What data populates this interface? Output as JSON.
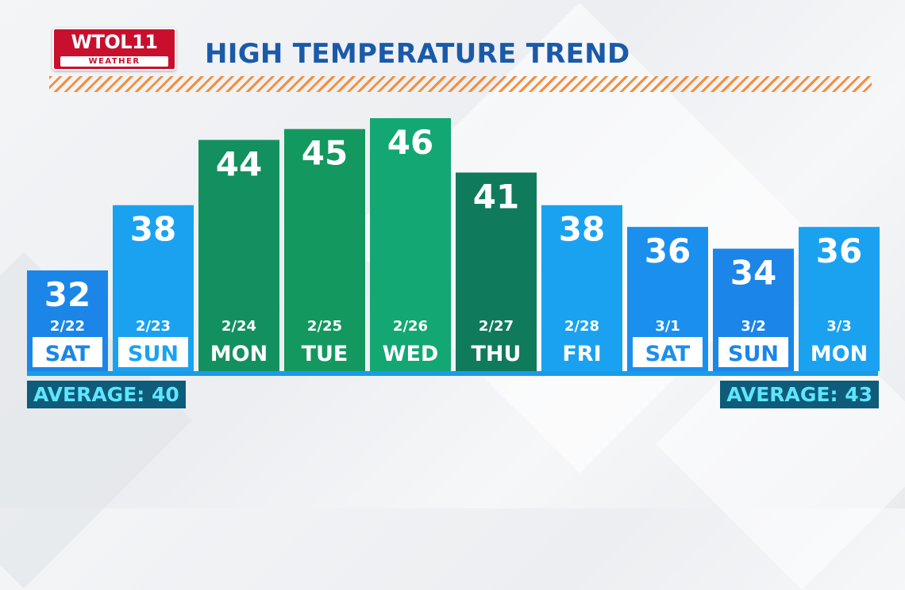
{
  "logo": {
    "main": "WTOL11",
    "sub": "WEATHER"
  },
  "colors": {
    "title": "#1b5aa8",
    "stripe": "#f58e3c",
    "blue_light": "#1aa2f0",
    "blue": "#1b86e8",
    "blue_mid": "#198ff0",
    "green": "#13905f",
    "green_light": "#13a774",
    "green_dark": "#107a5c",
    "average_bg": "#0e5b7a",
    "average_text": "#5fe6ff"
  },
  "chart_data": {
    "type": "bar",
    "title": "HIGH TEMPERATURE TREND",
    "categories": [
      "SAT",
      "SUN",
      "MON",
      "TUE",
      "WED",
      "THU",
      "FRI",
      "SAT",
      "SUN",
      "MON"
    ],
    "dates": [
      "2/22",
      "2/23",
      "2/24",
      "2/25",
      "2/26",
      "2/27",
      "2/28",
      "3/1",
      "3/2",
      "3/3"
    ],
    "values": [
      32,
      38,
      44,
      45,
      46,
      41,
      38,
      36,
      34,
      36
    ],
    "bar_colors": [
      "#1b86e8",
      "#1aa2f0",
      "#13905f",
      "#13985f",
      "#13a774",
      "#107a5c",
      "#1aa2f0",
      "#1b8fee",
      "#1b86e8",
      "#1aa2f0"
    ],
    "day_boxed": [
      true,
      true,
      false,
      false,
      false,
      false,
      false,
      true,
      true,
      false
    ],
    "averages": [
      {
        "label": "AVERAGE: 40",
        "position": "bottom-left"
      },
      {
        "label": "AVERAGE: 43",
        "position": "bottom-right"
      }
    ]
  }
}
